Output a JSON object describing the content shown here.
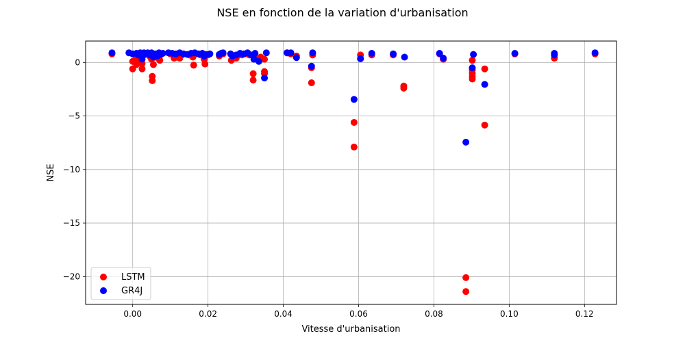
{
  "chart_data": {
    "type": "scatter",
    "title": "NSE en fonction de la variation d'urbanisation",
    "xlabel": "Vitesse d'urbanisation",
    "ylabel": "NSE",
    "xlim": [
      -0.0125,
      0.1285
    ],
    "ylim": [
      -22.6,
      2.0
    ],
    "xticks": [
      0.0,
      0.02,
      0.04,
      0.06,
      0.08,
      0.1,
      0.12
    ],
    "xtick_labels": [
      "0.00",
      "0.02",
      "0.04",
      "0.06",
      "0.08",
      "0.10",
      "0.12"
    ],
    "yticks": [
      0,
      -5,
      -10,
      -15,
      -20
    ],
    "ytick_labels": [
      "0",
      "−5",
      "−10",
      "−15",
      "−20"
    ],
    "grid": true,
    "legend_position": "lower-left",
    "series": [
      {
        "name": "LSTM",
        "color": "#ff0000",
        "points": [
          [
            -0.0055,
            0.8
          ],
          [
            0.0,
            -0.6
          ],
          [
            0.0,
            0.1
          ],
          [
            0.001,
            0.4
          ],
          [
            0.001,
            -0.2
          ],
          [
            0.002,
            0.6
          ],
          [
            0.002,
            0.2
          ],
          [
            0.0025,
            -0.6
          ],
          [
            0.0025,
            -0.1
          ],
          [
            0.003,
            0.7
          ],
          [
            0.004,
            0.8
          ],
          [
            0.0045,
            0.6
          ],
          [
            0.005,
            0.3
          ],
          [
            0.0052,
            -1.3
          ],
          [
            0.0052,
            -1.7
          ],
          [
            0.0055,
            -0.2
          ],
          [
            0.006,
            0.5
          ],
          [
            0.0065,
            0.7
          ],
          [
            0.007,
            0.3
          ],
          [
            0.0072,
            0.2
          ],
          [
            0.01,
            0.8
          ],
          [
            0.011,
            0.4
          ],
          [
            0.012,
            0.6
          ],
          [
            0.0125,
            0.4
          ],
          [
            0.013,
            0.7
          ],
          [
            0.015,
            0.7
          ],
          [
            0.016,
            0.5
          ],
          [
            0.0162,
            -0.25
          ],
          [
            0.017,
            0.8
          ],
          [
            0.018,
            0.7
          ],
          [
            0.019,
            0.3
          ],
          [
            0.0192,
            -0.15
          ],
          [
            0.02,
            0.7
          ],
          [
            0.023,
            0.6
          ],
          [
            0.024,
            0.8
          ],
          [
            0.0262,
            0.2
          ],
          [
            0.027,
            0.6
          ],
          [
            0.0275,
            0.4
          ],
          [
            0.028,
            0.7
          ],
          [
            0.029,
            0.7
          ],
          [
            0.03,
            0.8
          ],
          [
            0.031,
            0.7
          ],
          [
            0.032,
            -1.05
          ],
          [
            0.032,
            -1.65
          ],
          [
            0.0322,
            0.5
          ],
          [
            0.0335,
            0.3
          ],
          [
            0.034,
            0.5
          ],
          [
            0.035,
            -0.85
          ],
          [
            0.035,
            -1.05
          ],
          [
            0.035,
            0.3
          ],
          [
            0.041,
            0.9
          ],
          [
            0.042,
            0.8
          ],
          [
            0.0435,
            0.6
          ],
          [
            0.0475,
            -0.5
          ],
          [
            0.0475,
            -1.9
          ],
          [
            0.0478,
            0.7
          ],
          [
            0.0588,
            -5.6
          ],
          [
            0.0588,
            -7.9
          ],
          [
            0.0605,
            0.7
          ],
          [
            0.0635,
            0.7
          ],
          [
            0.0692,
            0.7
          ],
          [
            0.072,
            -2.2
          ],
          [
            0.072,
            -2.4
          ],
          [
            0.0815,
            0.8
          ],
          [
            0.0825,
            0.3
          ],
          [
            0.0885,
            -20.1
          ],
          [
            0.0885,
            -21.4
          ],
          [
            0.0902,
            0.2
          ],
          [
            0.0902,
            -0.7
          ],
          [
            0.0902,
            -1.0
          ],
          [
            0.0902,
            -1.3
          ],
          [
            0.0902,
            -1.55
          ],
          [
            0.0935,
            -0.6
          ],
          [
            0.0935,
            -5.85
          ],
          [
            0.1015,
            0.8
          ],
          [
            0.112,
            0.4
          ],
          [
            0.1228,
            0.8
          ]
        ]
      },
      {
        "name": "GR4J",
        "color": "#0000ff",
        "points": [
          [
            -0.0055,
            0.9
          ],
          [
            -0.001,
            0.9
          ],
          [
            0.0,
            0.8
          ],
          [
            0.001,
            0.85
          ],
          [
            0.0015,
            0.7
          ],
          [
            0.002,
            0.9
          ],
          [
            0.0025,
            0.3
          ],
          [
            0.003,
            0.9
          ],
          [
            0.0035,
            0.8
          ],
          [
            0.004,
            0.9
          ],
          [
            0.0045,
            0.7
          ],
          [
            0.005,
            0.9
          ],
          [
            0.0055,
            0.5
          ],
          [
            0.006,
            0.8
          ],
          [
            0.0065,
            0.6
          ],
          [
            0.007,
            0.9
          ],
          [
            0.0075,
            0.75
          ],
          [
            0.008,
            0.85
          ],
          [
            0.0095,
            0.9
          ],
          [
            0.0105,
            0.85
          ],
          [
            0.0115,
            0.8
          ],
          [
            0.0125,
            0.9
          ],
          [
            0.0135,
            0.8
          ],
          [
            0.0145,
            0.75
          ],
          [
            0.0155,
            0.85
          ],
          [
            0.0165,
            0.9
          ],
          [
            0.0175,
            0.8
          ],
          [
            0.0185,
            0.85
          ],
          [
            0.019,
            0.6
          ],
          [
            0.0195,
            0.75
          ],
          [
            0.0205,
            0.8
          ],
          [
            0.023,
            0.75
          ],
          [
            0.0235,
            0.85
          ],
          [
            0.024,
            0.9
          ],
          [
            0.026,
            0.8
          ],
          [
            0.0265,
            0.6
          ],
          [
            0.0275,
            0.7
          ],
          [
            0.0285,
            0.85
          ],
          [
            0.0295,
            0.8
          ],
          [
            0.0305,
            0.9
          ],
          [
            0.0315,
            0.7
          ],
          [
            0.0325,
            0.85
          ],
          [
            0.0322,
            0.3
          ],
          [
            0.0335,
            0.1
          ],
          [
            0.035,
            -1.45
          ],
          [
            0.0355,
            0.9
          ],
          [
            0.041,
            0.9
          ],
          [
            0.042,
            0.9
          ],
          [
            0.0435,
            0.45
          ],
          [
            0.0475,
            -0.35
          ],
          [
            0.0478,
            0.9
          ],
          [
            0.0588,
            -3.45
          ],
          [
            0.0605,
            0.35
          ],
          [
            0.0635,
            0.85
          ],
          [
            0.0692,
            0.8
          ],
          [
            0.0722,
            0.5
          ],
          [
            0.0815,
            0.85
          ],
          [
            0.0825,
            0.4
          ],
          [
            0.0885,
            -7.45
          ],
          [
            0.0902,
            -0.5
          ],
          [
            0.0905,
            0.75
          ],
          [
            0.0935,
            -2.05
          ],
          [
            0.1015,
            0.85
          ],
          [
            0.112,
            0.85
          ],
          [
            0.112,
            0.7
          ],
          [
            0.1228,
            0.9
          ]
        ]
      }
    ]
  }
}
